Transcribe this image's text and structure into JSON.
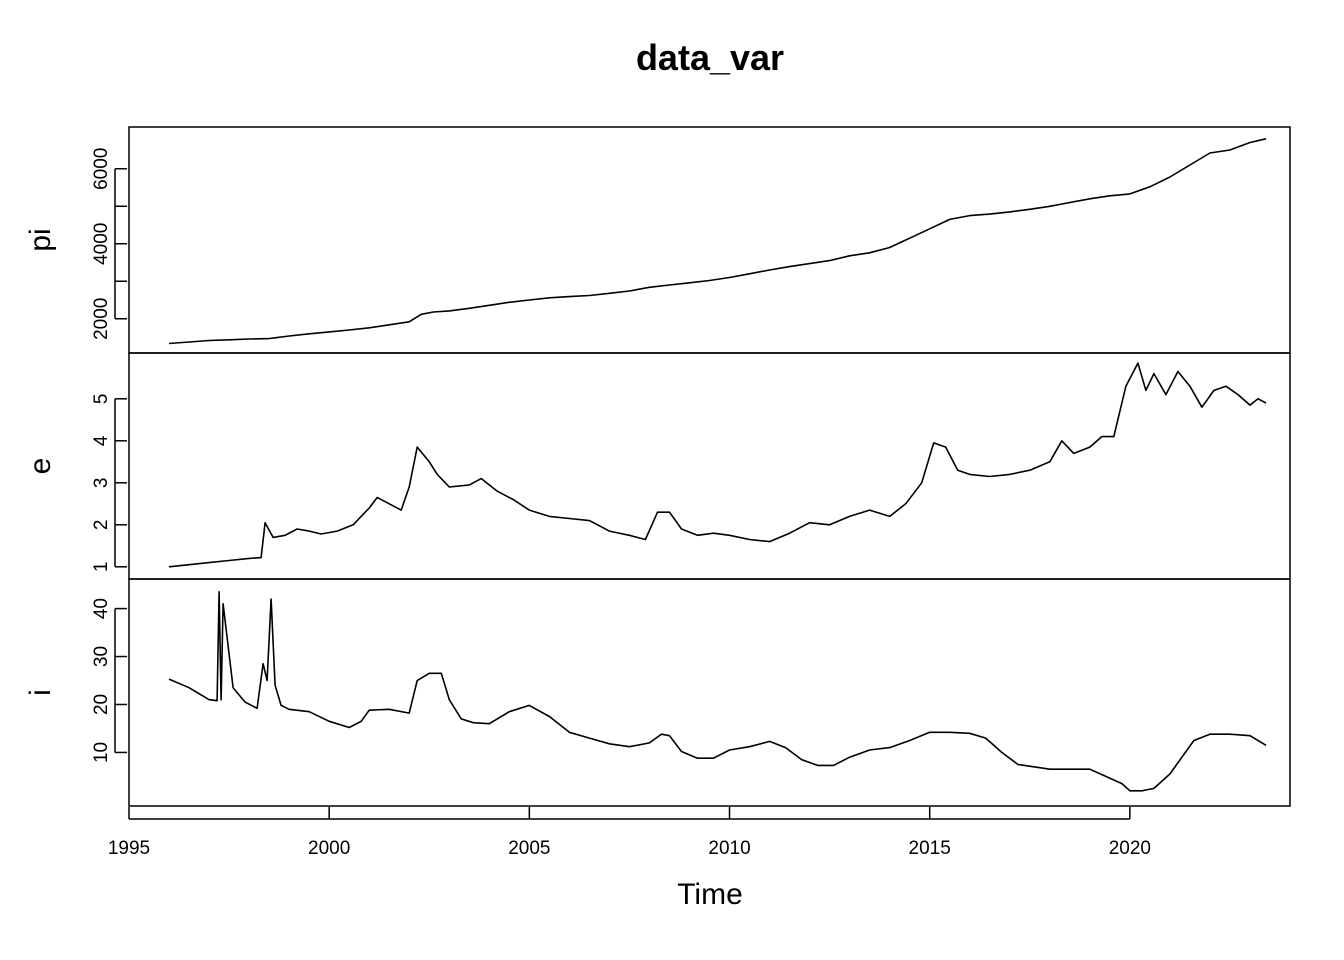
{
  "chart_data": {
    "type": "line",
    "title": "data_var",
    "xlabel": "Time",
    "xlim": [
      1995,
      2024
    ],
    "xticks": [
      1995,
      2000,
      2005,
      2010,
      2015,
      2020
    ],
    "panels": [
      {
        "name": "pi",
        "ylabel": "pi",
        "ylim": [
          1300,
          6900
        ],
        "yticks": [
          2000,
          3000,
          4000,
          5000,
          6000
        ],
        "ytick_labels": [
          "2000",
          "",
          "4000",
          "",
          "6000"
        ],
        "x": [
          1996.0,
          1996.5,
          1997.0,
          1997.5,
          1998.0,
          1998.5,
          1999.0,
          1999.5,
          2000.0,
          2000.5,
          2001.0,
          2001.5,
          2002.0,
          2002.3,
          2002.6,
          2003.0,
          2003.5,
          2004.0,
          2004.5,
          2005.0,
          2005.5,
          2006.0,
          2006.5,
          2007.0,
          2007.5,
          2008.0,
          2008.5,
          2009.0,
          2009.5,
          2010.0,
          2010.5,
          2011.0,
          2011.5,
          2012.0,
          2012.5,
          2013.0,
          2013.5,
          2014.0,
          2014.3,
          2014.6,
          2015.0,
          2015.5,
          2016.0,
          2016.5,
          2017.0,
          2017.5,
          2018.0,
          2018.5,
          2019.0,
          2019.5,
          2020.0,
          2020.5,
          2021.0,
          2021.5,
          2022.0,
          2022.5,
          2023.0,
          2023.4
        ],
        "y": [
          1340,
          1380,
          1420,
          1440,
          1460,
          1470,
          1540,
          1600,
          1650,
          1700,
          1760,
          1840,
          1920,
          2120,
          2180,
          2210,
          2280,
          2360,
          2440,
          2500,
          2560,
          2590,
          2620,
          2680,
          2740,
          2840,
          2900,
          2960,
          3020,
          3100,
          3200,
          3300,
          3390,
          3470,
          3550,
          3680,
          3760,
          3900,
          4050,
          4200,
          4400,
          4650,
          4750,
          4790,
          4850,
          4920,
          5000,
          5100,
          5200,
          5280,
          5330,
          5520,
          5780,
          6100,
          6420,
          6500,
          6700,
          6800
        ]
      },
      {
        "name": "e",
        "ylabel": "e",
        "ylim": [
          0.9,
          5.9
        ],
        "yticks": [
          1,
          2,
          3,
          4,
          5
        ],
        "ytick_labels": [
          "1",
          "2",
          "3",
          "4",
          "5"
        ],
        "x": [
          1996.0,
          1996.5,
          1997.0,
          1997.5,
          1998.0,
          1998.3,
          1998.4,
          1998.6,
          1998.9,
          1999.2,
          1999.5,
          1999.8,
          2000.2,
          2000.6,
          2001.0,
          2001.2,
          2001.4,
          2001.8,
          2002.0,
          2002.2,
          2002.5,
          2002.7,
          2003.0,
          2003.5,
          2003.8,
          2004.2,
          2004.6,
          2005.0,
          2005.5,
          2006.0,
          2006.5,
          2007.0,
          2007.5,
          2007.9,
          2008.2,
          2008.5,
          2008.8,
          2009.2,
          2009.6,
          2010.0,
          2010.5,
          2011.0,
          2011.5,
          2012.0,
          2012.5,
          2013.0,
          2013.5,
          2014.0,
          2014.4,
          2014.8,
          2015.1,
          2015.4,
          2015.7,
          2016.0,
          2016.5,
          2017.0,
          2017.5,
          2018.0,
          2018.3,
          2018.6,
          2019.0,
          2019.3,
          2019.6,
          2019.9,
          2020.2,
          2020.4,
          2020.6,
          2020.9,
          2021.2,
          2021.5,
          2021.8,
          2022.1,
          2022.4,
          2022.7,
          2023.0,
          2023.2,
          2023.4
        ],
        "y": [
          1.0,
          1.05,
          1.1,
          1.15,
          1.2,
          1.22,
          2.05,
          1.7,
          1.75,
          1.9,
          1.85,
          1.78,
          1.85,
          2.0,
          2.4,
          2.65,
          2.55,
          2.35,
          2.9,
          3.85,
          3.5,
          3.2,
          2.9,
          2.95,
          3.1,
          2.8,
          2.6,
          2.35,
          2.2,
          2.15,
          2.1,
          1.85,
          1.75,
          1.65,
          2.3,
          2.3,
          1.9,
          1.75,
          1.8,
          1.75,
          1.65,
          1.6,
          1.8,
          2.05,
          2.0,
          2.2,
          2.35,
          2.2,
          2.5,
          3.0,
          3.95,
          3.85,
          3.3,
          3.2,
          3.15,
          3.2,
          3.3,
          3.5,
          4.0,
          3.7,
          3.85,
          4.1,
          4.1,
          5.3,
          5.85,
          5.2,
          5.6,
          5.1,
          5.65,
          5.3,
          4.8,
          5.2,
          5.3,
          5.1,
          4.85,
          5.0,
          4.9
        ]
      },
      {
        "name": "i",
        "ylabel": "i",
        "ylim": [
          0.5,
          44.5
        ],
        "yticks": [
          10,
          20,
          30,
          40
        ],
        "ytick_labels": [
          "10",
          "20",
          "30",
          "40"
        ],
        "x": [
          1996.0,
          1996.5,
          1997.0,
          1997.2,
          1997.25,
          1997.3,
          1997.35,
          1997.45,
          1997.6,
          1997.9,
          1998.2,
          1998.35,
          1998.45,
          1998.55,
          1998.65,
          1998.8,
          1999.0,
          1999.5,
          2000.0,
          2000.5,
          2000.8,
          2001.0,
          2001.5,
          2002.0,
          2002.2,
          2002.5,
          2002.8,
          2003.0,
          2003.3,
          2003.6,
          2004.0,
          2004.5,
          2005.0,
          2005.5,
          2006.0,
          2006.5,
          2007.0,
          2007.5,
          2008.0,
          2008.3,
          2008.5,
          2008.8,
          2009.2,
          2009.6,
          2010.0,
          2010.5,
          2011.0,
          2011.4,
          2011.8,
          2012.2,
          2012.6,
          2013.0,
          2013.5,
          2014.0,
          2014.5,
          2015.0,
          2015.5,
          2016.0,
          2016.4,
          2016.8,
          2017.2,
          2017.6,
          2018.0,
          2018.5,
          2019.0,
          2019.4,
          2019.8,
          2020.0,
          2020.3,
          2020.6,
          2021.0,
          2021.3,
          2021.6,
          2022.0,
          2022.5,
          2023.0,
          2023.4
        ],
        "y": [
          25.3,
          23.5,
          21.0,
          20.8,
          43.5,
          21.0,
          41.0,
          34.0,
          23.5,
          20.5,
          19.2,
          28.5,
          25.0,
          42.0,
          24.0,
          19.8,
          19.0,
          18.5,
          16.5,
          15.2,
          16.5,
          18.8,
          19.0,
          18.2,
          25.0,
          26.5,
          26.5,
          21.0,
          17.0,
          16.2,
          16.0,
          18.5,
          19.8,
          17.5,
          14.2,
          13.0,
          11.8,
          11.2,
          12.0,
          13.8,
          13.5,
          10.2,
          8.8,
          8.8,
          10.5,
          11.2,
          12.3,
          11.0,
          8.5,
          7.3,
          7.3,
          9.0,
          10.5,
          11.0,
          12.5,
          14.2,
          14.2,
          14.0,
          13.0,
          10.0,
          7.5,
          7.0,
          6.5,
          6.5,
          6.5,
          5.0,
          3.5,
          2.0,
          2.0,
          2.5,
          5.5,
          9.0,
          12.5,
          13.8,
          13.8,
          13.5,
          11.5
        ]
      }
    ],
    "grid": false,
    "legend": "none"
  }
}
